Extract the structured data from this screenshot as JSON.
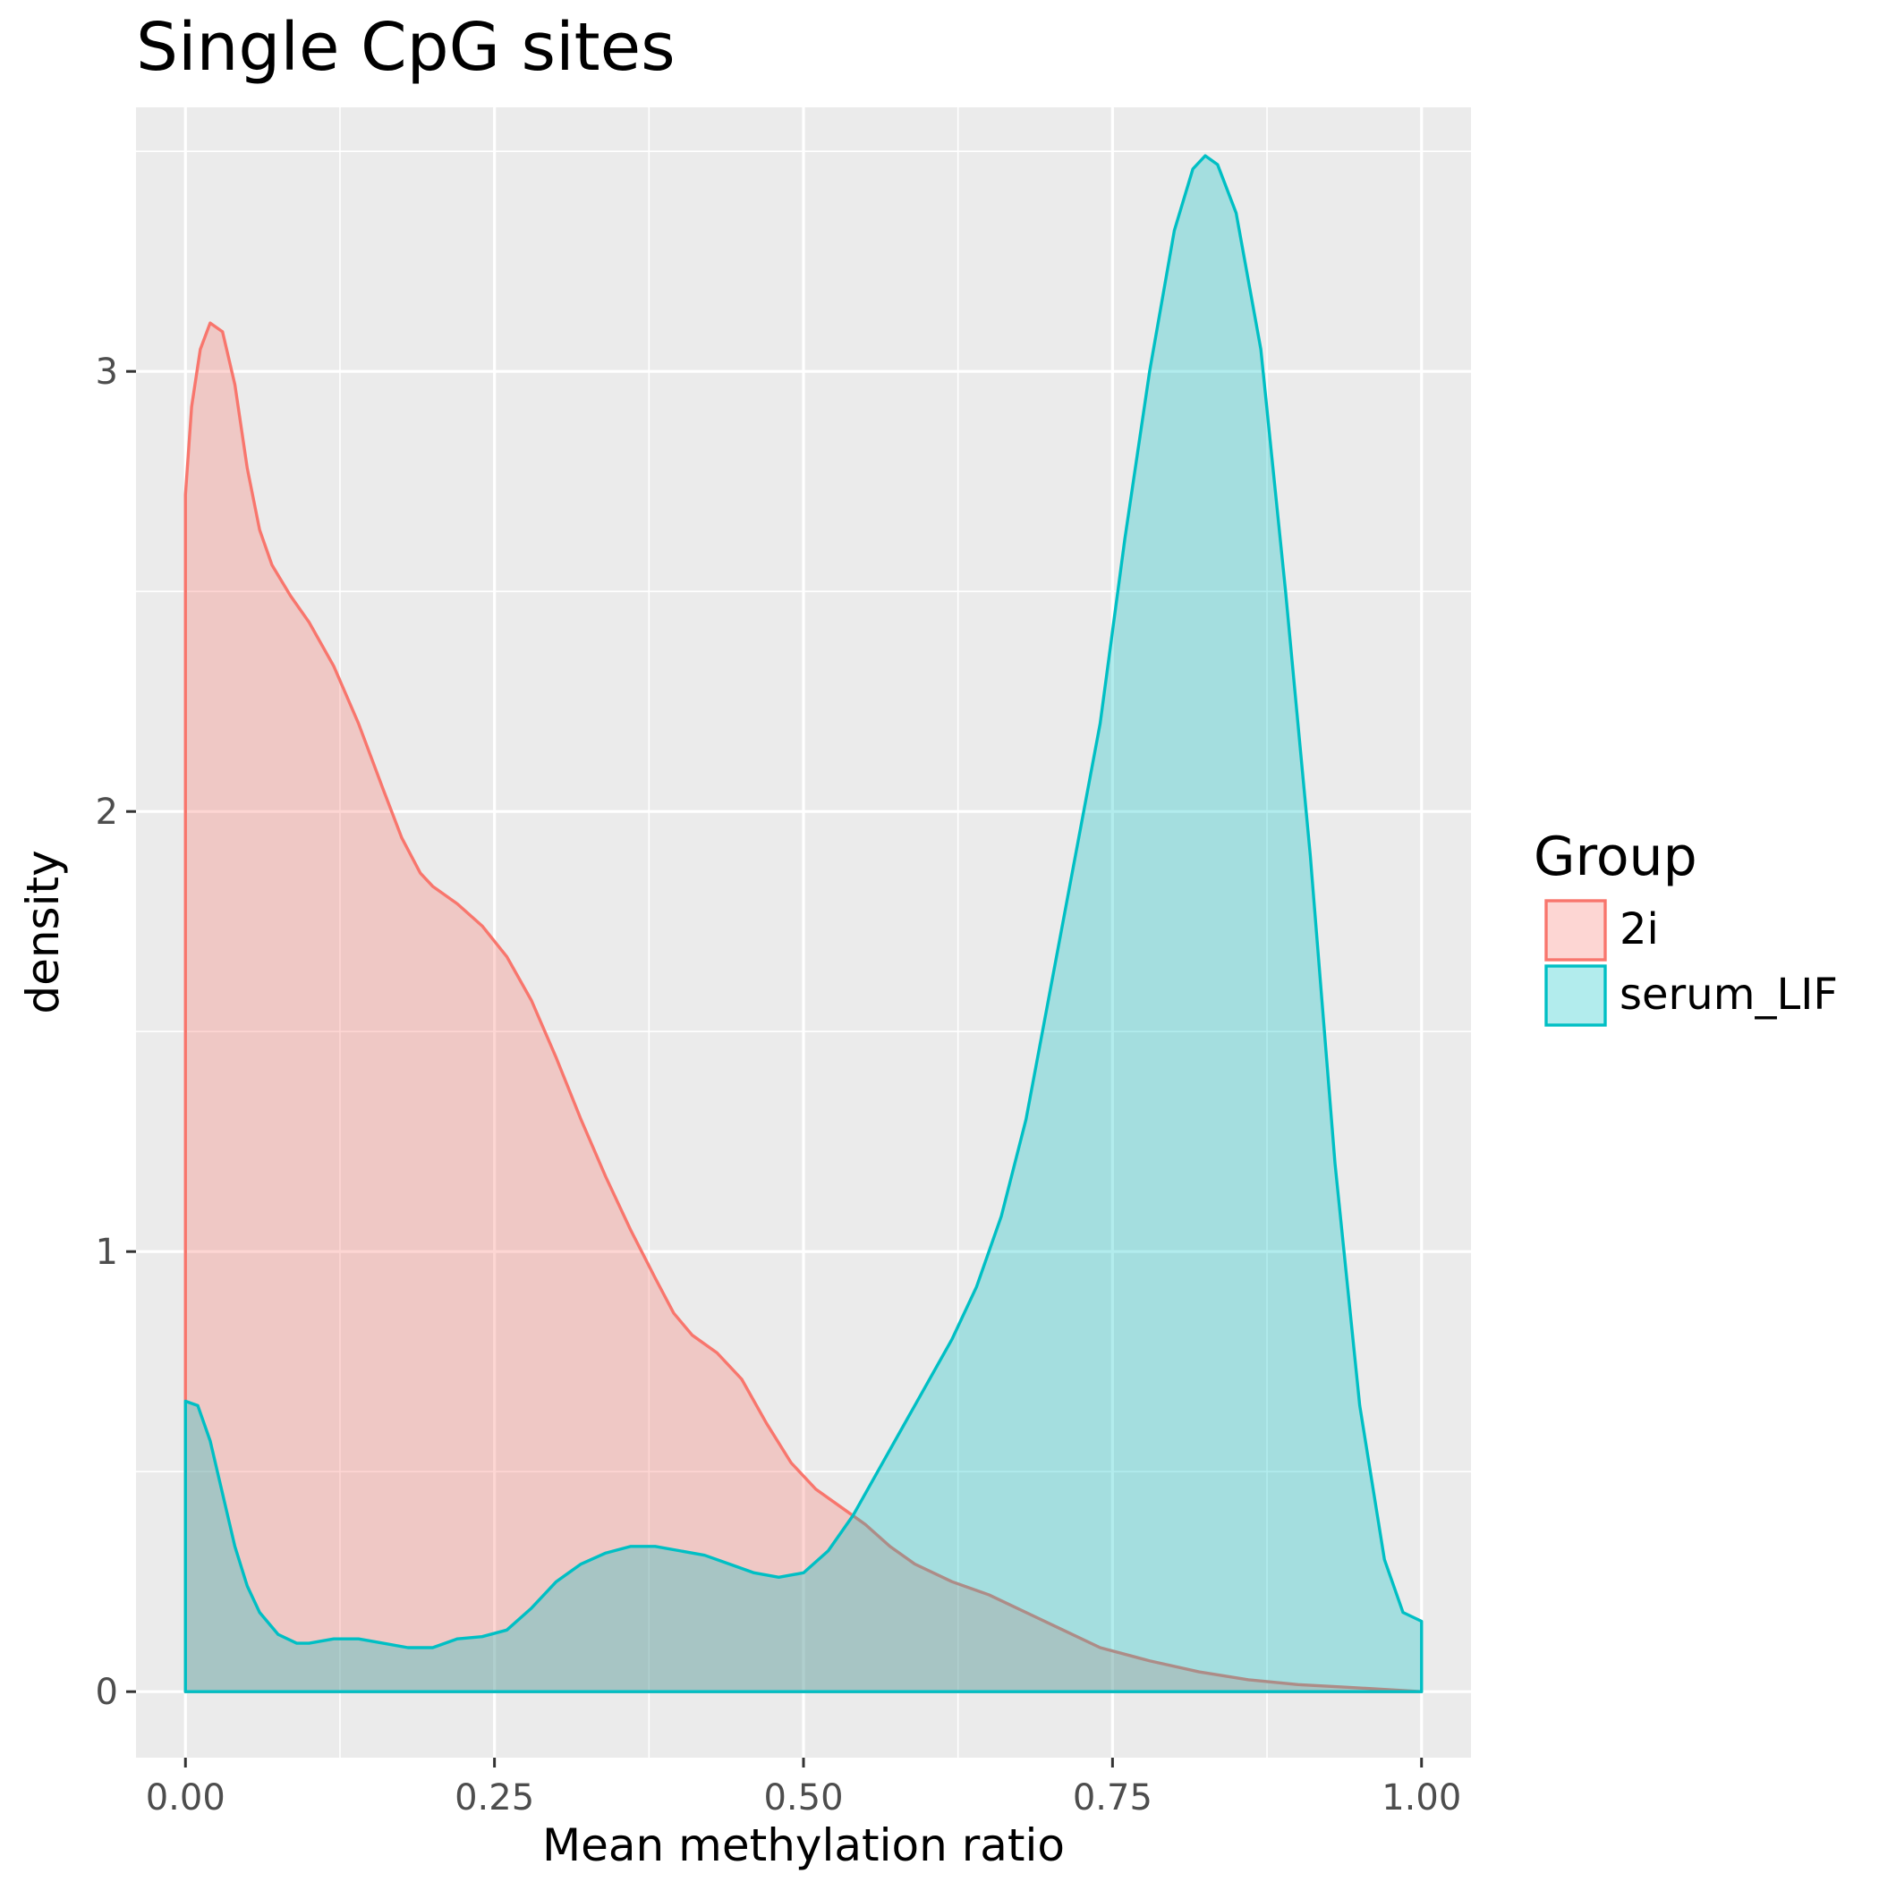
{
  "chart_data": {
    "type": "area",
    "title": "Single CpG sites",
    "xlabel": "Mean methylation ratio",
    "ylabel": "density",
    "xlim": [
      -0.04,
      1.04
    ],
    "ylim": [
      -0.15,
      3.6
    ],
    "x_ticks": [
      0,
      0.25,
      0.5,
      0.75,
      1
    ],
    "x_tick_labels": [
      "0.00",
      "0.25",
      "0.50",
      "0.75",
      "1.00"
    ],
    "y_ticks": [
      0,
      1,
      2,
      3
    ],
    "y_tick_labels": [
      "0",
      "1",
      "2",
      "3"
    ],
    "grid": true,
    "legend": {
      "title": "Group",
      "position": "right"
    },
    "series": [
      {
        "name": "2i",
        "color": "#F8766D",
        "fill": "#F8766D",
        "fill_opacity": 0.3,
        "points": [
          [
            0,
            2.72
          ],
          [
            0.005,
            2.92
          ],
          [
            0.012,
            3.05
          ],
          [
            0.02,
            3.11
          ],
          [
            0.03,
            3.09
          ],
          [
            0.04,
            2.97
          ],
          [
            0.05,
            2.78
          ],
          [
            0.06,
            2.64
          ],
          [
            0.07,
            2.56
          ],
          [
            0.085,
            2.49
          ],
          [
            0.1,
            2.43
          ],
          [
            0.12,
            2.33
          ],
          [
            0.14,
            2.2
          ],
          [
            0.16,
            2.05
          ],
          [
            0.175,
            1.94
          ],
          [
            0.19,
            1.86
          ],
          [
            0.2,
            1.83
          ],
          [
            0.22,
            1.79
          ],
          [
            0.24,
            1.74
          ],
          [
            0.26,
            1.67
          ],
          [
            0.28,
            1.57
          ],
          [
            0.3,
            1.44
          ],
          [
            0.32,
            1.3
          ],
          [
            0.34,
            1.17
          ],
          [
            0.36,
            1.05
          ],
          [
            0.38,
            0.94
          ],
          [
            0.395,
            0.86
          ],
          [
            0.41,
            0.81
          ],
          [
            0.43,
            0.77
          ],
          [
            0.45,
            0.71
          ],
          [
            0.47,
            0.61
          ],
          [
            0.49,
            0.52
          ],
          [
            0.51,
            0.46
          ],
          [
            0.53,
            0.42
          ],
          [
            0.55,
            0.38
          ],
          [
            0.57,
            0.33
          ],
          [
            0.59,
            0.29
          ],
          [
            0.62,
            0.25
          ],
          [
            0.65,
            0.22
          ],
          [
            0.68,
            0.18
          ],
          [
            0.71,
            0.14
          ],
          [
            0.74,
            0.1
          ],
          [
            0.78,
            0.07
          ],
          [
            0.82,
            0.045
          ],
          [
            0.86,
            0.027
          ],
          [
            0.9,
            0.016
          ],
          [
            0.94,
            0.01
          ],
          [
            0.97,
            0.005
          ],
          [
            1.0,
            0.0
          ]
        ]
      },
      {
        "name": "serum_LIF",
        "color": "#00BFC4",
        "fill": "#00BFC4",
        "fill_opacity": 0.3,
        "points": [
          [
            0,
            0.66
          ],
          [
            0.01,
            0.65
          ],
          [
            0.02,
            0.57
          ],
          [
            0.03,
            0.45
          ],
          [
            0.04,
            0.33
          ],
          [
            0.05,
            0.24
          ],
          [
            0.06,
            0.18
          ],
          [
            0.075,
            0.13
          ],
          [
            0.09,
            0.11
          ],
          [
            0.1,
            0.11
          ],
          [
            0.12,
            0.12
          ],
          [
            0.14,
            0.12
          ],
          [
            0.16,
            0.11
          ],
          [
            0.18,
            0.1
          ],
          [
            0.2,
            0.1
          ],
          [
            0.22,
            0.12
          ],
          [
            0.24,
            0.125
          ],
          [
            0.26,
            0.14
          ],
          [
            0.28,
            0.19
          ],
          [
            0.3,
            0.25
          ],
          [
            0.32,
            0.29
          ],
          [
            0.34,
            0.315
          ],
          [
            0.36,
            0.33
          ],
          [
            0.38,
            0.33
          ],
          [
            0.4,
            0.32
          ],
          [
            0.42,
            0.31
          ],
          [
            0.44,
            0.29
          ],
          [
            0.46,
            0.27
          ],
          [
            0.48,
            0.26
          ],
          [
            0.5,
            0.27
          ],
          [
            0.52,
            0.32
          ],
          [
            0.54,
            0.4
          ],
          [
            0.56,
            0.5
          ],
          [
            0.58,
            0.6
          ],
          [
            0.6,
            0.7
          ],
          [
            0.62,
            0.8
          ],
          [
            0.64,
            0.92
          ],
          [
            0.66,
            1.08
          ],
          [
            0.68,
            1.3
          ],
          [
            0.7,
            1.6
          ],
          [
            0.72,
            1.9
          ],
          [
            0.74,
            2.2
          ],
          [
            0.76,
            2.62
          ],
          [
            0.78,
            3.0
          ],
          [
            0.8,
            3.32
          ],
          [
            0.815,
            3.46
          ],
          [
            0.825,
            3.49
          ],
          [
            0.835,
            3.47
          ],
          [
            0.85,
            3.36
          ],
          [
            0.87,
            3.05
          ],
          [
            0.89,
            2.5
          ],
          [
            0.91,
            1.9
          ],
          [
            0.93,
            1.2
          ],
          [
            0.95,
            0.65
          ],
          [
            0.97,
            0.3
          ],
          [
            0.985,
            0.18
          ],
          [
            1.0,
            0.16
          ]
        ]
      }
    ]
  }
}
